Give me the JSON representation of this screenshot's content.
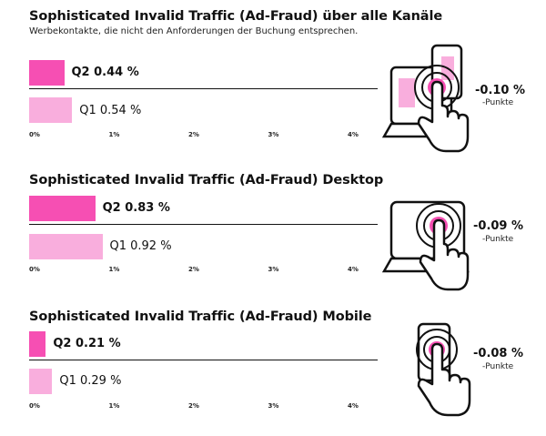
{
  "colors": {
    "q2": "#f64fb3",
    "q1": "#f9aedd",
    "accent": "#f64fb3",
    "line": "#111111"
  },
  "axis": {
    "max": 5,
    "ticks": [
      "0%",
      "1%",
      "2%",
      "3%",
      "4%"
    ]
  },
  "chart_data": [
    {
      "type": "bar",
      "title": "Sophisticated Invalid Traffic (Ad-Fraud) über alle Kanäle",
      "subtitle": "Werbekontakte, die nicht den Anforderungen der Buchung entsprechen.",
      "orientation": "horizontal",
      "categories": [
        "Q2",
        "Q1"
      ],
      "values": [
        0.44,
        0.54
      ],
      "labels": [
        "Q2 0.44 %",
        "Q1 0.54 %"
      ],
      "xlim": [
        0,
        5
      ],
      "delta": "-0.10 %",
      "delta_unit": "-Punkte",
      "icon": "laptop-phone-hand-icon"
    },
    {
      "type": "bar",
      "title": "Sophisticated Invalid Traffic (Ad-Fraud) Desktop",
      "orientation": "horizontal",
      "categories": [
        "Q2",
        "Q1"
      ],
      "values": [
        0.83,
        0.92
      ],
      "labels": [
        "Q2 0.83 %",
        "Q1 0.92 %"
      ],
      "xlim": [
        0,
        5
      ],
      "delta": "-0.09 %",
      "delta_unit": "-Punkte",
      "icon": "laptop-hand-icon"
    },
    {
      "type": "bar",
      "title": "Sophisticated Invalid Traffic (Ad-Fraud) Mobile",
      "orientation": "horizontal",
      "categories": [
        "Q2",
        "Q1"
      ],
      "values": [
        0.21,
        0.29
      ],
      "labels": [
        "Q2 0.21 %",
        "Q1 0.29 %"
      ],
      "xlim": [
        0,
        5
      ],
      "delta": "-0.08 %",
      "delta_unit": "-Punkte",
      "icon": "phone-hand-icon"
    }
  ]
}
